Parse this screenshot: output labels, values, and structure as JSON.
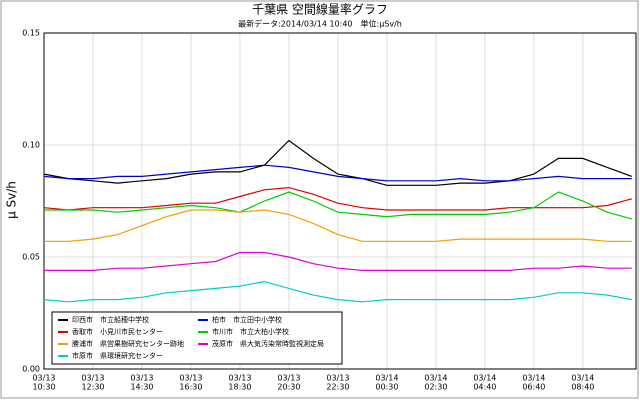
{
  "chart_data": {
    "type": "line",
    "title": "千葉県 空間線量率グラフ",
    "subtitle": "最新データ:2014/03/14 10:40　単位:μSv/h",
    "ylabel": "μ Sv/h",
    "x": [
      0,
      1,
      2,
      3,
      4,
      5,
      6,
      7,
      8,
      9,
      10,
      11,
      12,
      13,
      14,
      15,
      16,
      17,
      18,
      19,
      20,
      21,
      22,
      23,
      24
    ],
    "xlim": [
      0,
      24.17
    ],
    "xticks": [
      {
        "value": 0,
        "label": [
          "03/13",
          "10:30"
        ]
      },
      {
        "value": 2,
        "label": [
          "03/13",
          "12:30"
        ]
      },
      {
        "value": 4,
        "label": [
          "03/13",
          "14:30"
        ]
      },
      {
        "value": 6,
        "label": [
          "03/13",
          "16:30"
        ]
      },
      {
        "value": 8,
        "label": [
          "03/13",
          "18:30"
        ]
      },
      {
        "value": 10,
        "label": [
          "03/13",
          "20:30"
        ]
      },
      {
        "value": 12,
        "label": [
          "03/13",
          "22:30"
        ]
      },
      {
        "value": 14,
        "label": [
          "03/14",
          "00:30"
        ]
      },
      {
        "value": 16,
        "label": [
          "03/14",
          "02:30"
        ]
      },
      {
        "value": 18,
        "label": [
          "03/14",
          "04:40"
        ]
      },
      {
        "value": 20,
        "label": [
          "03/14",
          "06:40"
        ]
      },
      {
        "value": 22,
        "label": [
          "03/14",
          "08:40"
        ]
      }
    ],
    "ylim": [
      0,
      0.15
    ],
    "yticks": [
      {
        "value": 0,
        "label": "0.00"
      },
      {
        "value": 0.05,
        "label": "0.05"
      },
      {
        "value": 0.1,
        "label": "0.10"
      },
      {
        "value": 0.15,
        "label": "0.15"
      }
    ],
    "grid": true,
    "legend": "lower left",
    "series": [
      {
        "name": "印西市　市立船穂中学校",
        "color": "#000000",
        "values": [
          0.087,
          0.085,
          0.084,
          0.083,
          0.084,
          0.085,
          0.087,
          0.088,
          0.088,
          0.091,
          0.102,
          0.094,
          0.087,
          0.085,
          0.082,
          0.082,
          0.082,
          0.083,
          0.083,
          0.084,
          0.087,
          0.094,
          0.094,
          0.09,
          0.086
        ]
      },
      {
        "name": "柏市　市立田中小学校",
        "color": "#0000cc",
        "values": [
          0.086,
          0.085,
          0.085,
          0.086,
          0.086,
          0.087,
          0.088,
          0.089,
          0.09,
          0.091,
          0.09,
          0.088,
          0.086,
          0.085,
          0.084,
          0.084,
          0.084,
          0.085,
          0.084,
          0.084,
          0.085,
          0.086,
          0.085,
          0.085,
          0.085
        ]
      },
      {
        "name": "香取市　小見川市民センター",
        "color": "#dd0000",
        "values": [
          0.072,
          0.071,
          0.072,
          0.072,
          0.072,
          0.073,
          0.074,
          0.074,
          0.077,
          0.08,
          0.081,
          0.078,
          0.074,
          0.072,
          0.071,
          0.071,
          0.071,
          0.071,
          0.071,
          0.072,
          0.072,
          0.072,
          0.072,
          0.073,
          0.076
        ]
      },
      {
        "name": "市川市　市立大柏小学校",
        "color": "#00cc00",
        "values": [
          0.071,
          0.071,
          0.071,
          0.07,
          0.071,
          0.072,
          0.073,
          0.072,
          0.07,
          0.075,
          0.079,
          0.075,
          0.07,
          0.069,
          0.068,
          0.069,
          0.069,
          0.069,
          0.069,
          0.07,
          0.072,
          0.079,
          0.075,
          0.07,
          0.067
        ]
      },
      {
        "name": "勝浦市　県営果樹研究センター跡地",
        "color": "#f0a000",
        "values": [
          0.057,
          0.057,
          0.058,
          0.06,
          0.064,
          0.068,
          0.071,
          0.071,
          0.07,
          0.071,
          0.069,
          0.065,
          0.06,
          0.057,
          0.057,
          0.057,
          0.057,
          0.058,
          0.058,
          0.058,
          0.058,
          0.058,
          0.058,
          0.057,
          0.057
        ]
      },
      {
        "name": "茂原市　県大気汚染常時監視測定局",
        "color": "#dd00dd",
        "values": [
          0.044,
          0.044,
          0.044,
          0.045,
          0.045,
          0.046,
          0.047,
          0.048,
          0.052,
          0.052,
          0.05,
          0.047,
          0.045,
          0.044,
          0.044,
          0.044,
          0.044,
          0.044,
          0.044,
          0.044,
          0.045,
          0.045,
          0.046,
          0.045,
          0.045
        ]
      },
      {
        "name": "市原市　県環境研究センター",
        "color": "#00cccc",
        "values": [
          0.031,
          0.03,
          0.031,
          0.031,
          0.032,
          0.034,
          0.035,
          0.036,
          0.037,
          0.039,
          0.036,
          0.033,
          0.031,
          0.03,
          0.031,
          0.031,
          0.031,
          0.031,
          0.031,
          0.031,
          0.032,
          0.034,
          0.034,
          0.033,
          0.031
        ]
      }
    ]
  }
}
